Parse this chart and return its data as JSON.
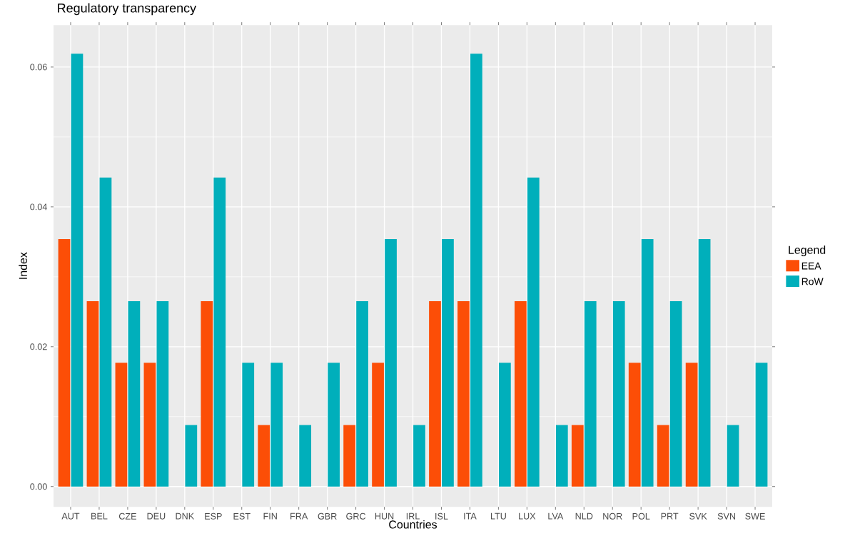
{
  "chart_data": {
    "type": "bar",
    "title": "Regulatory transparency",
    "xlabel": "Countries",
    "ylabel": "Index",
    "legend_title": "Legend",
    "categories": [
      "AUT",
      "BEL",
      "CZE",
      "DEU",
      "DNK",
      "ESP",
      "EST",
      "FIN",
      "FRA",
      "GBR",
      "GRC",
      "HUN",
      "IRL",
      "ISL",
      "ITA",
      "LTU",
      "LUX",
      "LVA",
      "NLD",
      "NOR",
      "POL",
      "PRT",
      "SVK",
      "SVN",
      "SWE"
    ],
    "series": [
      {
        "name": "EEA",
        "color": "#fc4e07",
        "values": [
          0.0354,
          0.0265,
          0.0177,
          0.0177,
          0,
          0.0265,
          0,
          0.0088,
          0,
          0,
          0.0088,
          0.0177,
          0,
          0.0265,
          0.0265,
          0,
          0.0265,
          0,
          0.0088,
          0,
          0.0177,
          0.0088,
          0.0177,
          0,
          0
        ]
      },
      {
        "name": "RoW",
        "color": "#00afbb",
        "values": [
          0.0619,
          0.0442,
          0.0265,
          0.0265,
          0.0088,
          0.0442,
          0.0177,
          0.0177,
          0.0088,
          0.0177,
          0.0265,
          0.0354,
          0.0088,
          0.0354,
          0.0619,
          0.0177,
          0.0442,
          0.0088,
          0.0265,
          0.0265,
          0.0354,
          0.0265,
          0.0354,
          0.0088,
          0.0177
        ]
      }
    ],
    "ylim": [
      -0.0029,
      0.066
    ],
    "yticks": [
      {
        "value": 0,
        "label": "0.00"
      },
      {
        "value": 0.02,
        "label": "0.02"
      },
      {
        "value": 0.04,
        "label": "0.04"
      },
      {
        "value": 0.06,
        "label": "0.06"
      }
    ],
    "grid": true,
    "legend": "right"
  }
}
